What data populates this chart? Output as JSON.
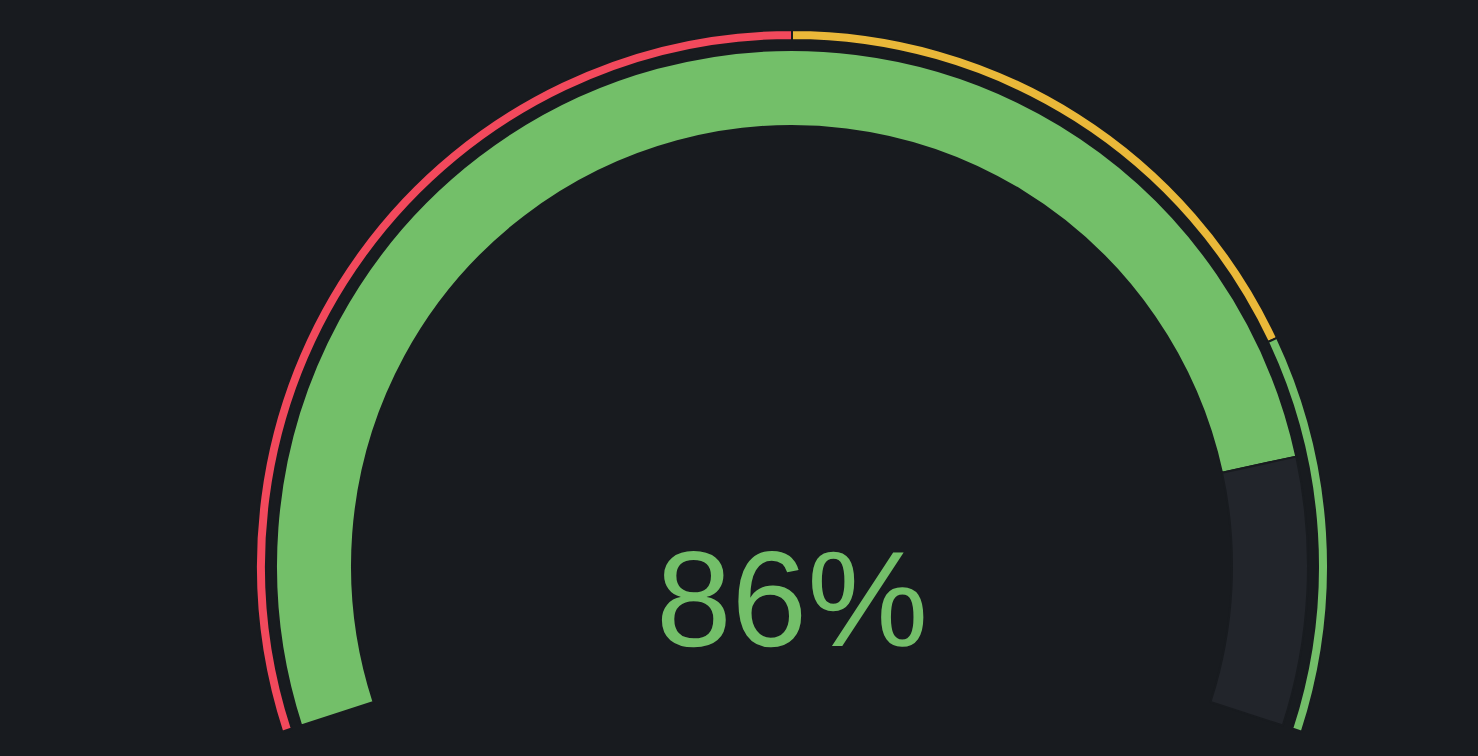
{
  "chart_data": {
    "type": "donut",
    "categories": [
      null,
      null,
      null
    ],
    "series": [
      {
        "values": [
          86,
          14,
          null
        ],
        "colors": [
          "#73bf69",
          "#22252b",
          null
        ]
      },
      {
        "values": [
          50,
          30,
          20
        ],
        "colors": [
          "#f2495c",
          "#eab839",
          "#73bf69"
        ]
      }
    ],
    "annotations": [
      "86%"
    ]
  }
}
